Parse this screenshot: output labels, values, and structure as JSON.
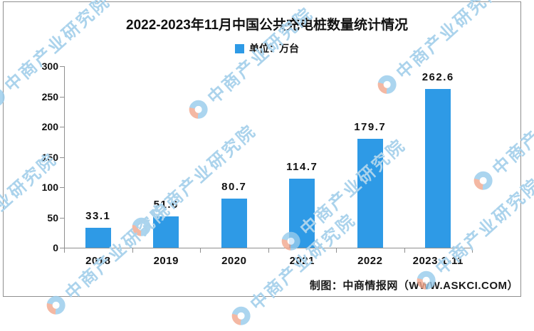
{
  "title": "2022-2023年11月中国公共充电桩数量统计情况",
  "legend": {
    "label": "单位：万台",
    "swatch_color": "#2E9AE6"
  },
  "chart_data": {
    "type": "bar",
    "categories": [
      "2018",
      "2019",
      "2020",
      "2021",
      "2022",
      "2023.1-11"
    ],
    "values": [
      33.1,
      51.6,
      80.7,
      114.7,
      179.7,
      262.6
    ],
    "title": "2022-2023年11月中国公共充电桩数量统计情况",
    "legend_label": "单位：万台",
    "legend_position": "top-center",
    "xlabel": "",
    "ylabel": "",
    "ylim": [
      0,
      300
    ],
    "yticks": [
      0,
      50,
      100,
      150,
      200,
      250,
      300
    ],
    "bar_color": "#2E9AE6",
    "grid": false,
    "data_labels": true
  },
  "footer": {
    "credit": "制图：中商情报网（WWW.ASKCI.COM）"
  },
  "watermark": {
    "text": "中商产业研究院",
    "color": "#ABD3EC"
  }
}
